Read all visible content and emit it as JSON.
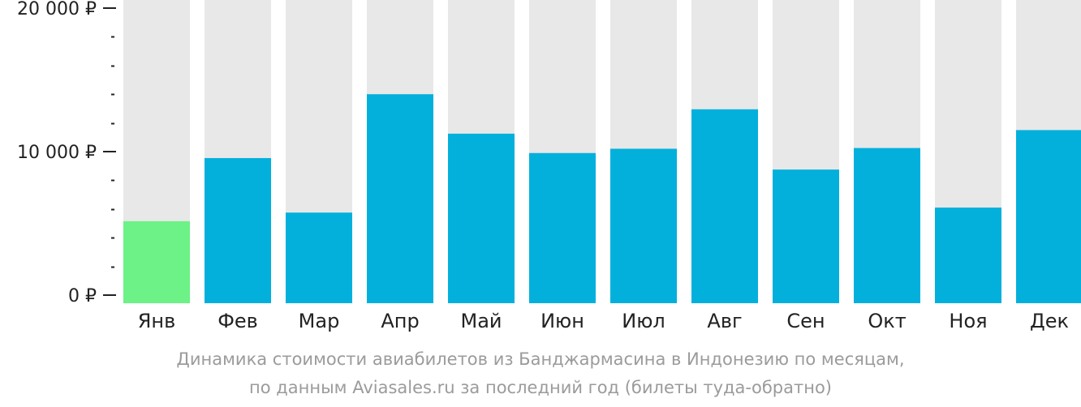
{
  "chart_data": {
    "type": "bar",
    "categories": [
      "Янв",
      "Фев",
      "Мар",
      "Апр",
      "Май",
      "Июн",
      "Июл",
      "Авг",
      "Сен",
      "Окт",
      "Ноя",
      "Дек"
    ],
    "values": [
      5150,
      9550,
      5750,
      14000,
      11250,
      9900,
      10200,
      12950,
      8750,
      10250,
      6100,
      11500
    ],
    "ylim": [
      0,
      20000
    ],
    "yticks": [
      {
        "value": 0,
        "label": "0 ₽"
      },
      {
        "value": 10000,
        "label": "10 000 ₽"
      },
      {
        "value": 20000,
        "label": "20 000 ₽"
      }
    ],
    "minor_tick_step": 2000,
    "highlight_index": 0,
    "colors": {
      "bar": "#03b0dc",
      "highlight": "#6cf286",
      "background_bar": "#e8e8e8",
      "axis": "#222222"
    },
    "grid": false,
    "legend": "none"
  },
  "caption": {
    "line1": "Динамика стоимости авиабилетов из Банджармасина в Индонезию по месяцам,",
    "line2": "по данным Aviasales.ru за последний год (билеты туда-обратно)"
  }
}
